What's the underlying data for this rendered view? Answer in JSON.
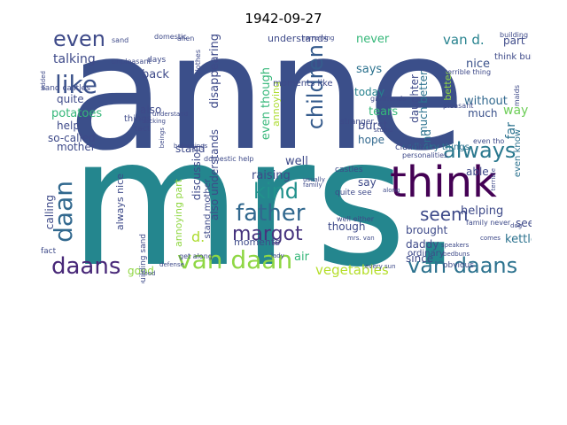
{
  "title": "1942-09-27",
  "palette": {
    "dark_purple": "#440154",
    "indigo": "#472d7b",
    "slate_blue": "#3b528b",
    "steel_blue": "#2c728e",
    "teal": "#21918c",
    "sea_green": "#28ae80",
    "green": "#5ec962",
    "lime": "#addc30",
    "yellow": "#fde725"
  },
  "words": [
    {
      "text": "anne",
      "color": "#3b4f8a"
    },
    {
      "text": "mrs.",
      "color": "#24868e"
    },
    {
      "text": "think",
      "color": "#440154"
    },
    {
      "text": "van daan",
      "color": "#8fd744"
    },
    {
      "text": "van daans",
      "color": "#2c728e"
    },
    {
      "text": "daans",
      "color": "#482878"
    },
    {
      "text": "father",
      "color": "#31688e"
    },
    {
      "text": "margot",
      "color": "#46337e"
    },
    {
      "text": "like",
      "color": "#3b528b"
    },
    {
      "text": "even",
      "color": "#3e4a89"
    },
    {
      "text": "daan",
      "color": "#31688e"
    },
    {
      "text": "children",
      "color": "#365c8d"
    },
    {
      "text": "kind",
      "color": "#21918c"
    },
    {
      "text": "always",
      "color": "#2a788e"
    },
    {
      "text": "seem",
      "color": "#3e4a89"
    },
    {
      "text": "d.",
      "color": "#addc30"
    },
    {
      "text": "van d.",
      "color": "#26828e"
    },
    {
      "text": "vegetables",
      "color": "#b5de2b"
    },
    {
      "text": "never",
      "color": "#35b779"
    },
    {
      "text": "part",
      "color": "#3e4a89"
    },
    {
      "text": "nice",
      "color": "#3b528b"
    },
    {
      "text": "says",
      "color": "#2c728e"
    },
    {
      "text": "today",
      "color": "#26828e"
    },
    {
      "text": "better",
      "color": "#90d743"
    },
    {
      "text": "tears",
      "color": "#35b779"
    },
    {
      "text": "way",
      "color": "#6ece58"
    },
    {
      "text": "far",
      "color": "#2c728e"
    },
    {
      "text": "much better",
      "color": "#2c728e"
    },
    {
      "text": "without",
      "color": "#31688e"
    },
    {
      "text": "much",
      "color": "#3b528b"
    },
    {
      "text": "end",
      "color": "#2c728e"
    },
    {
      "text": "daughter",
      "color": "#3e4a89"
    },
    {
      "text": "burst",
      "color": "#3e4a89"
    },
    {
      "text": "hope",
      "color": "#31688e"
    },
    {
      "text": "able",
      "color": "#3e4a89"
    },
    {
      "text": "even know",
      "color": "#2c728e"
    },
    {
      "text": "helping",
      "color": "#3e4a89"
    },
    {
      "text": "see",
      "color": "#3e4a89"
    },
    {
      "text": "brought",
      "color": "#3e4a89"
    },
    {
      "text": "daddy",
      "color": "#3e4a89"
    },
    {
      "text": "since",
      "color": "#3e4a89"
    },
    {
      "text": "kettle",
      "color": "#2c728e"
    },
    {
      "text": "though",
      "color": "#3e4a89"
    },
    {
      "text": "say",
      "color": "#3e4a89"
    },
    {
      "text": "air",
      "color": "#35b779"
    },
    {
      "text": "talking",
      "color": "#3e4a89"
    },
    {
      "text": "quite",
      "color": "#3e4a89"
    },
    {
      "text": "potatoes",
      "color": "#35b779"
    },
    {
      "text": "help",
      "color": "#3e4a89"
    },
    {
      "text": "so-called",
      "color": "#3e4a89"
    },
    {
      "text": "mother",
      "color": "#3e4a89"
    },
    {
      "text": "calling",
      "color": "#3e4a89"
    },
    {
      "text": "back",
      "color": "#3e4a89"
    },
    {
      "text": "also",
      "color": "#3e4a89"
    },
    {
      "text": "good",
      "color": "#90d743"
    },
    {
      "text": "disappearing",
      "color": "#3e4a89"
    },
    {
      "text": "also understands",
      "color": "#3e4a89"
    },
    {
      "text": "even though",
      "color": "#35b779"
    },
    {
      "text": "annoying",
      "color": "#addc30"
    },
    {
      "text": "well",
      "color": "#3e4a89"
    },
    {
      "text": "raising",
      "color": "#3e4a89"
    },
    {
      "text": "discussion",
      "color": "#3e4a89"
    },
    {
      "text": "always nice",
      "color": "#3e4a89"
    },
    {
      "text": "annoying part",
      "color": "#90d743"
    },
    {
      "text": "understands",
      "color": "#3e4a89"
    },
    {
      "text": "stand mother",
      "color": "#3e4a89"
    },
    {
      "text": "stand",
      "color": "#3e4a89"
    },
    {
      "text": "moments",
      "color": "#3e4a89"
    },
    {
      "text": "ordinary things",
      "color": "#2c728e"
    },
    {
      "text": "claimed",
      "color": "#3e4a89"
    },
    {
      "text": "building sand",
      "color": "#3e4a89"
    },
    {
      "text": "think building",
      "color": "#3e4a89"
    },
    {
      "text": "stranger",
      "color": "#3e4a89"
    },
    {
      "text": "things",
      "color": "#3e4a89"
    },
    {
      "text": "castles",
      "color": "#3e4a89"
    },
    {
      "text": "obvious",
      "color": "#3e4a89"
    },
    {
      "text": "sand castles",
      "color": "#3e4a89"
    },
    {
      "text": "moments like",
      "color": "#3e4a89"
    },
    {
      "text": "even tho",
      "color": "#3e4a89"
    },
    {
      "text": "understand",
      "color": "#3e4a89"
    },
    {
      "text": "domestic help",
      "color": "#3e4a89"
    },
    {
      "text": "ordinary",
      "color": "#3e4a89"
    },
    {
      "text": "quite see",
      "color": "#3e4a89"
    },
    {
      "text": "fact",
      "color": "#3e4a89"
    },
    {
      "text": "days",
      "color": "#3e4a89"
    },
    {
      "text": "tact",
      "color": "#3e4a89"
    },
    {
      "text": "sand",
      "color": "#3e4a89"
    },
    {
      "text": "alien",
      "color": "#3e4a89"
    },
    {
      "text": "domestic",
      "color": "#3e4a89"
    },
    {
      "text": "terrible thing",
      "color": "#3e4a89"
    },
    {
      "text": "girlfriends",
      "color": "#3e4a89"
    },
    {
      "text": "pleasant",
      "color": "#3e4a89"
    },
    {
      "text": "personalities",
      "color": "#3e4a89"
    },
    {
      "text": "maids",
      "color": "#3e4a89"
    },
    {
      "text": "building",
      "color": "#3e4a89"
    },
    {
      "text": "unpleasant",
      "color": "#3e4a89"
    },
    {
      "text": "get along",
      "color": "#3e4a89"
    },
    {
      "text": "well either",
      "color": "#3e4a89"
    },
    {
      "text": "family never",
      "color": "#3e4a89"
    },
    {
      "text": "clothes",
      "color": "#3e4a89"
    },
    {
      "text": "remaining",
      "color": "#3e4a89"
    },
    {
      "text": "beings",
      "color": "#3e4a89"
    },
    {
      "text": "belongings",
      "color": "#3e4a89"
    },
    {
      "text": "defense",
      "color": "#3e4a89"
    },
    {
      "text": "food",
      "color": "#3e4a89"
    },
    {
      "text": "lady",
      "color": "#3e4a89"
    },
    {
      "text": "every sun",
      "color": "#3e4a89"
    },
    {
      "text": "mrs. van",
      "color": "#3e4a89"
    },
    {
      "text": "stupid",
      "color": "#3e4a89"
    },
    {
      "text": "usually",
      "color": "#3e4a89"
    },
    {
      "text": "family",
      "color": "#3e4a89"
    },
    {
      "text": "along",
      "color": "#3e4a89"
    },
    {
      "text": "speakers",
      "color": "#3e4a89"
    },
    {
      "text": "bedbuns",
      "color": "#3e4a89"
    },
    {
      "text": "comes",
      "color": "#3e4a89"
    },
    {
      "text": "dog",
      "color": "#3e4a89"
    },
    {
      "text": "terrible",
      "color": "#3e4a89"
    },
    {
      "text": "lacking",
      "color": "#3e4a89"
    },
    {
      "text": "added",
      "color": "#3e4a89"
    }
  ]
}
